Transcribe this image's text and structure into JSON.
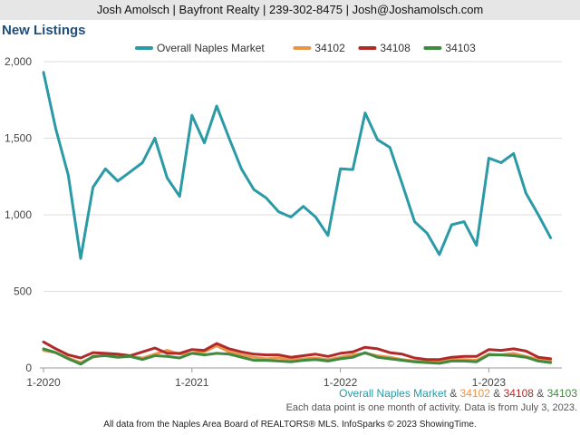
{
  "header": {
    "contact": "Josh Amolsch | Bayfront Realty | 239-302-8475 | Josh@Joshamolsch.com"
  },
  "page_title": "New Listings",
  "caption": {
    "series_line": [
      {
        "text": "Overall Naples Market",
        "color": "#2a9aa6"
      },
      {
        "text": " & ",
        "color": "#555555"
      },
      {
        "text": "34102",
        "color": "#e8954a"
      },
      {
        "text": " & ",
        "color": "#555555"
      },
      {
        "text": "34108",
        "color": "#b02a2a"
      },
      {
        "text": " & ",
        "color": "#555555"
      },
      {
        "text": "34103",
        "color": "#3f8a3f"
      }
    ],
    "note": "Each data point is one month of activity. Data is from July 3, 2023."
  },
  "footer": "All data from the Naples Area Board of REALTORS® MLS. InfoSparks © 2023 ShowingTime.",
  "chart_data": {
    "type": "line",
    "title": "New Listings",
    "x": [
      "2020-01",
      "2020-02",
      "2020-03",
      "2020-04",
      "2020-05",
      "2020-06",
      "2020-07",
      "2020-08",
      "2020-09",
      "2020-10",
      "2020-11",
      "2020-12",
      "2021-01",
      "2021-02",
      "2021-03",
      "2021-04",
      "2021-05",
      "2021-06",
      "2021-07",
      "2021-08",
      "2021-09",
      "2021-10",
      "2021-11",
      "2021-12",
      "2022-01",
      "2022-02",
      "2022-03",
      "2022-04",
      "2022-05",
      "2022-06",
      "2022-07",
      "2022-08",
      "2022-09",
      "2022-10",
      "2022-11",
      "2022-12",
      "2023-01",
      "2023-02",
      "2023-03",
      "2023-04",
      "2023-05",
      "2023-06"
    ],
    "x_ticks": [
      {
        "x": "2020-01",
        "label": "1-2020"
      },
      {
        "x": "2021-01",
        "label": "1-2021"
      },
      {
        "x": "2022-01",
        "label": "1-2022"
      },
      {
        "x": "2023-01",
        "label": "1-2023"
      }
    ],
    "ylim": [
      0,
      2000
    ],
    "y_ticks": [
      {
        "value": 0,
        "label": "0"
      },
      {
        "value": 500,
        "label": "500"
      },
      {
        "value": 1000,
        "label": "1,000"
      },
      {
        "value": 1500,
        "label": "1,500"
      },
      {
        "value": 2000,
        "label": "2,000"
      }
    ],
    "grid": true,
    "legend_position": "top",
    "series": [
      {
        "name": "Overall Naples Market",
        "color": "#2a9aa6",
        "values": [
          1930,
          1560,
          1260,
          715,
          1180,
          1300,
          1220,
          1280,
          1340,
          1500,
          1240,
          1120,
          1650,
          1470,
          1710,
          1500,
          1300,
          1165,
          1110,
          1020,
          985,
          1055,
          985,
          865,
          1300,
          1295,
          1665,
          1490,
          1440,
          1200,
          955,
          880,
          740,
          935,
          955,
          800,
          1370,
          1340,
          1400,
          1140,
          1000,
          850
        ]
      },
      {
        "name": "34102",
        "color": "#e8954a",
        "values": [
          115,
          100,
          65,
          35,
          70,
          85,
          80,
          75,
          65,
          90,
          115,
          90,
          95,
          105,
          145,
          105,
          85,
          70,
          60,
          65,
          55,
          60,
          65,
          55,
          70,
          85,
          95,
          80,
          70,
          55,
          45,
          40,
          45,
          55,
          55,
          50,
          90,
          85,
          95,
          75,
          55,
          45
        ]
      },
      {
        "name": "34108",
        "color": "#b02a2a",
        "values": [
          170,
          125,
          85,
          65,
          100,
          95,
          90,
          80,
          105,
          130,
          95,
          95,
          120,
          115,
          160,
          125,
          105,
          90,
          85,
          85,
          70,
          80,
          90,
          75,
          95,
          105,
          135,
          125,
          100,
          90,
          65,
          55,
          55,
          70,
          75,
          75,
          120,
          115,
          125,
          110,
          70,
          60
        ]
      },
      {
        "name": "34103",
        "color": "#3f8a3f",
        "values": [
          125,
          100,
          60,
          25,
          75,
          80,
          70,
          75,
          55,
          80,
          75,
          65,
          95,
          85,
          95,
          90,
          70,
          50,
          50,
          45,
          40,
          50,
          55,
          45,
          60,
          70,
          100,
          70,
          60,
          50,
          40,
          35,
          30,
          45,
          45,
          40,
          85,
          85,
          80,
          70,
          45,
          35
        ]
      }
    ]
  }
}
